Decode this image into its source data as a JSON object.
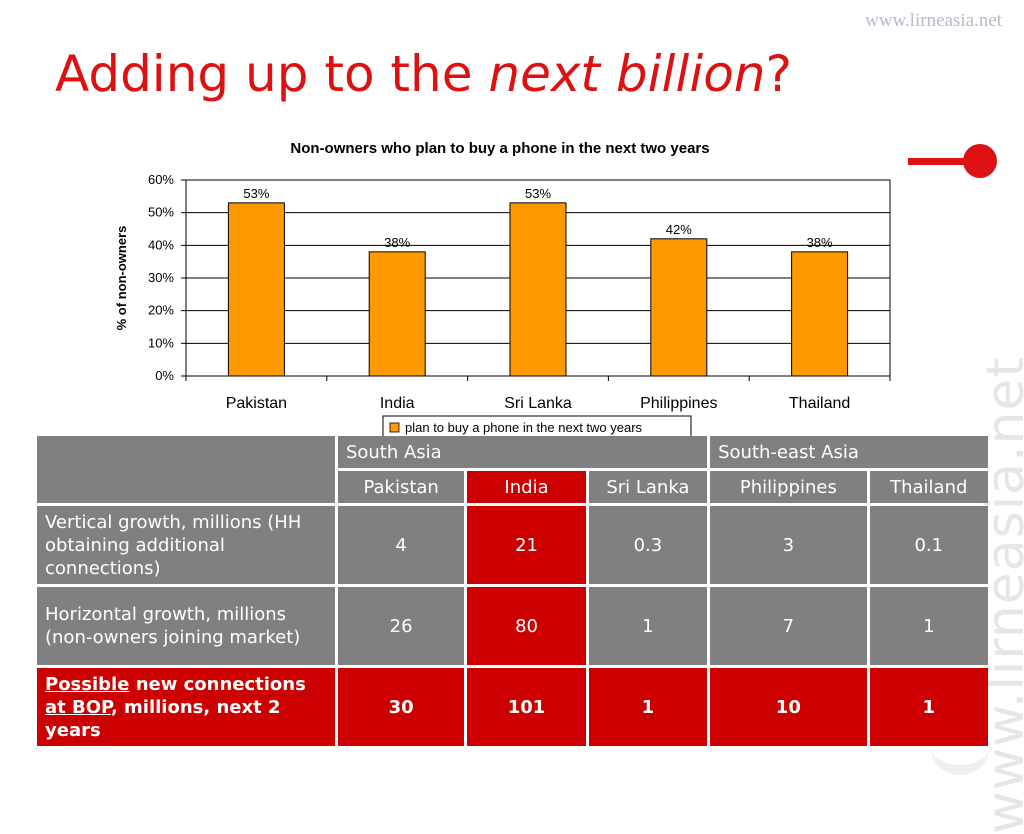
{
  "watermark": "www.lirneasia.net",
  "title": {
    "part1": "Adding up to the ",
    "emphasis": "next billion",
    "part2": "?"
  },
  "chart_data": {
    "type": "bar",
    "title": "Non-owners who plan to buy a phone in the next two years",
    "ylabel": "% of non-owners",
    "xlabel": "",
    "categories": [
      "Pakistan",
      "India",
      "Sri Lanka",
      "Philippines",
      "Thailand"
    ],
    "series": [
      {
        "name": "plan to buy a phone in the next two years",
        "values": [
          53,
          38,
          53,
          42,
          38
        ]
      }
    ],
    "data_labels": [
      "53%",
      "38%",
      "53%",
      "42%",
      "38%"
    ],
    "ylim": [
      0,
      60
    ],
    "yticks": [
      0,
      10,
      20,
      30,
      40,
      50,
      60
    ],
    "ytick_labels": [
      "0%",
      "10%",
      "20%",
      "30%",
      "40%",
      "50%",
      "60%"
    ],
    "grid": true,
    "legend": "bottom",
    "bar_color": "#ff9900"
  },
  "table": {
    "regions": [
      "South Asia",
      "South-east Asia"
    ],
    "countries": [
      "Pakistan",
      "India",
      "Sri Lanka",
      "Philippines",
      "Thailand"
    ],
    "rows": [
      {
        "label": "Vertical growth, millions (HH obtaining additional connections)",
        "values": [
          "4",
          "21",
          "0.3",
          "3",
          "0.1"
        ]
      },
      {
        "label": "Horizontal growth, millions (non-owners joining market)",
        "values": [
          "26",
          "80",
          "1",
          "7",
          "1"
        ]
      }
    ],
    "total_row": {
      "label_parts": [
        "Possible",
        " new connections ",
        "at BOP",
        ", millions, next 2 years"
      ],
      "values": [
        "30",
        "101",
        "1",
        "10",
        "1"
      ]
    }
  },
  "colors": {
    "accent": "#dd1111",
    "table_gray": "#808080",
    "table_red": "#cc0000",
    "bar": "#ff9900"
  }
}
